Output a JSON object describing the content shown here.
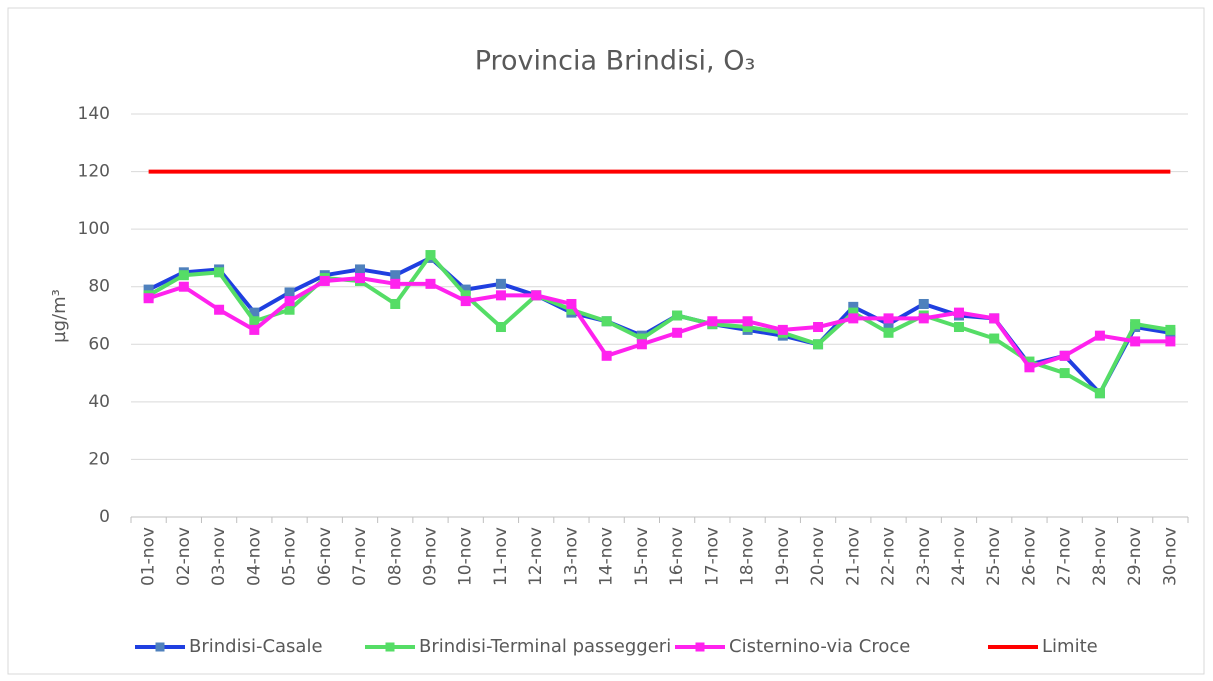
{
  "chart_data": {
    "type": "line",
    "title": "Provincia Brindisi, O₃",
    "y_label": "µg/m³",
    "categories": [
      "01-nov",
      "02-nov",
      "03-nov",
      "04-nov",
      "05-nov",
      "06-nov",
      "07-nov",
      "08-nov",
      "09-nov",
      "10-nov",
      "11-nov",
      "12-nov",
      "13-nov",
      "14-nov",
      "15-nov",
      "16-nov",
      "17-nov",
      "18-nov",
      "19-nov",
      "20-nov",
      "21-nov",
      "22-nov",
      "23-nov",
      "24-nov",
      "25-nov",
      "26-nov",
      "27-nov",
      "28-nov",
      "29-nov",
      "30-nov"
    ],
    "series": [
      {
        "name": "Brindisi-Casale",
        "color": "#1f3fe0",
        "marker_color": "#4f81bd",
        "values": [
          79,
          85,
          86,
          71,
          78,
          84,
          86,
          84,
          90,
          79,
          81,
          77,
          71,
          68,
          63,
          70,
          67,
          65,
          63,
          60,
          73,
          67,
          74,
          70,
          69,
          53,
          56,
          43,
          66,
          64
        ]
      },
      {
        "name": "Brindisi-Terminal passeggeri",
        "color": "#55dd66",
        "marker_color": "#55dd66",
        "values": [
          77,
          84,
          85,
          68,
          72,
          83,
          82,
          74,
          91,
          77,
          66,
          77,
          72,
          68,
          62,
          70,
          67,
          66,
          64,
          60,
          71,
          64,
          70,
          66,
          62,
          54,
          50,
          43,
          67,
          65
        ]
      },
      {
        "name": "Cisternino-via Croce",
        "color": "#ff22ee",
        "marker_color": "#ff22ee",
        "values": [
          76,
          80,
          72,
          65,
          75,
          82,
          83,
          81,
          81,
          75,
          77,
          77,
          74,
          56,
          60,
          64,
          68,
          68,
          65,
          66,
          69,
          69,
          69,
          71,
          69,
          52,
          56,
          63,
          61,
          61
        ]
      },
      {
        "name": "Limite",
        "color": "#ff0000",
        "markers": false,
        "values": [
          120,
          120,
          120,
          120,
          120,
          120,
          120,
          120,
          120,
          120,
          120,
          120,
          120,
          120,
          120,
          120,
          120,
          120,
          120,
          120,
          120,
          120,
          120,
          120,
          120,
          120,
          120,
          120,
          120,
          120
        ]
      }
    ],
    "ylim": [
      0,
      140
    ],
    "yticks": [
      0,
      20,
      40,
      60,
      80,
      100,
      120,
      140
    ],
    "grid": true,
    "legend": "bottom"
  }
}
